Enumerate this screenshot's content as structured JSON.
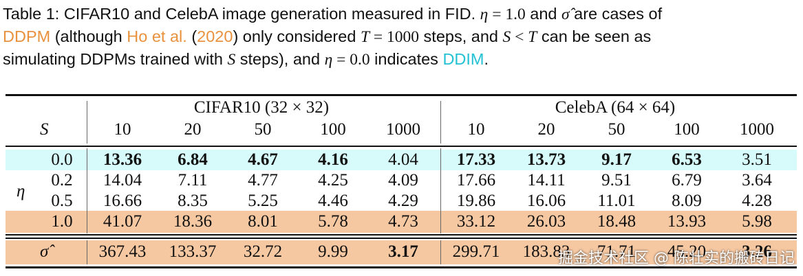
{
  "caption": {
    "prefix": "Table 1: CIFAR10 and CelebA image generation measured in FID.",
    "eta_sym": "η",
    "eq_one": " = 1.0",
    "and_word": " and ",
    "sigma_sym": "σ̂",
    "are_cases": " are cases of",
    "ddpm_link": "DDPM",
    "although": " (although ",
    "ho_link": "Ho et al.",
    "paren_open": " (",
    "year_link": "2020",
    "paren_close": ")",
    "only_considered": " only considered ",
    "T_sym": "T",
    "eq_1000": " = 1000",
    "steps_and": " steps, and ",
    "S_sym": "S",
    "lt": " < ",
    "can_be_seen": " can be seen as",
    "line3_pre": "simulating DDPMs trained with ",
    "line3_mid": " steps), and ",
    "eq_zero": " = 0.0",
    "indicates": " indicates ",
    "ddim_link": "DDIM",
    "period": "."
  },
  "table": {
    "groups": [
      "CIFAR10 (32 × 32)",
      "CelebA (64 × 64)"
    ],
    "s_label": "S",
    "eta_label": "η",
    "sigma_label": "σ̂",
    "steps": [
      "10",
      "20",
      "50",
      "100",
      "1000",
      "10",
      "20",
      "50",
      "100",
      "1000"
    ],
    "rows": [
      {
        "eta": "0.0",
        "values": [
          "13.36",
          "6.84",
          "4.67",
          "4.16",
          "4.04",
          "17.33",
          "13.73",
          "9.17",
          "6.53",
          "3.51"
        ],
        "bold": [
          true,
          true,
          true,
          true,
          false,
          true,
          true,
          true,
          true,
          false
        ]
      },
      {
        "eta": "0.2",
        "values": [
          "14.04",
          "7.11",
          "4.77",
          "4.25",
          "4.09",
          "17.66",
          "14.11",
          "9.51",
          "6.79",
          "3.64"
        ],
        "bold": [
          false,
          false,
          false,
          false,
          false,
          false,
          false,
          false,
          false,
          false
        ]
      },
      {
        "eta": "0.5",
        "values": [
          "16.66",
          "8.35",
          "5.25",
          "4.46",
          "4.29",
          "19.86",
          "16.06",
          "11.01",
          "8.09",
          "4.28"
        ],
        "bold": [
          false,
          false,
          false,
          false,
          false,
          false,
          false,
          false,
          false,
          false
        ]
      },
      {
        "eta": "1.0",
        "values": [
          "41.07",
          "18.36",
          "8.01",
          "5.78",
          "4.73",
          "33.12",
          "26.03",
          "18.48",
          "13.93",
          "5.98"
        ],
        "bold": [
          false,
          false,
          false,
          false,
          false,
          false,
          false,
          false,
          false,
          false
        ]
      }
    ],
    "sigma_row": {
      "values": [
        "367.43",
        "133.37",
        "32.72",
        "9.99",
        "3.17",
        "299.71",
        "183.83",
        "71.71",
        "45.20",
        "3.26"
      ],
      "bold": [
        false,
        false,
        false,
        false,
        true,
        false,
        false,
        false,
        false,
        true
      ]
    }
  },
  "watermark": "掘金技术社区 @ 陈壮实的搬砖日记",
  "colors": {
    "highlight_cyan": "#d7fbfb",
    "highlight_orange": "#f6c8a2",
    "link_orange": "#e9913d",
    "link_cyan": "#22c1d4"
  }
}
